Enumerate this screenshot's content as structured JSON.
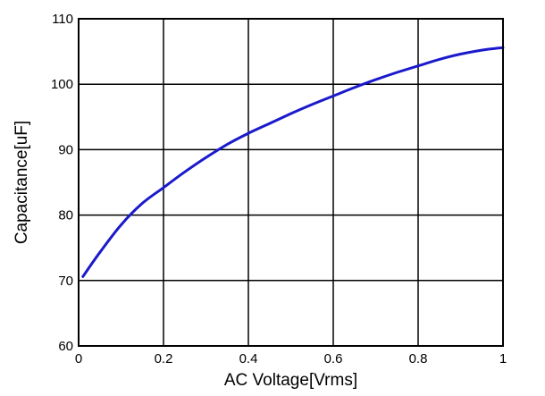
{
  "chart_data": {
    "type": "line",
    "title": "",
    "xlabel": "AC Voltage[Vrms]",
    "ylabel": "Capacitance[uF]",
    "xlim": [
      0,
      1
    ],
    "ylim": [
      60,
      110
    ],
    "xticks": [
      0,
      0.2,
      0.4,
      0.6,
      0.8,
      1
    ],
    "xtick_labels": [
      "0",
      "0.2",
      "0.4",
      "0.6",
      "0.8",
      "1"
    ],
    "yticks": [
      60,
      70,
      80,
      90,
      100,
      110
    ],
    "ytick_labels": [
      "60",
      "70",
      "80",
      "90",
      "100",
      "110"
    ],
    "grid": true,
    "legend": "none",
    "line_color": "#1a1acc",
    "series": [
      {
        "x": [
          0.01,
          0.05,
          0.1,
          0.15,
          0.2,
          0.25,
          0.3,
          0.35,
          0.4,
          0.45,
          0.5,
          0.55,
          0.6,
          0.65,
          0.7,
          0.75,
          0.8,
          0.85,
          0.9,
          0.95,
          1.0
        ],
        "values": [
          70.6,
          74.3,
          78.5,
          81.8,
          84.2,
          86.6,
          88.8,
          90.8,
          92.5,
          94.0,
          95.5,
          96.9,
          98.2,
          99.5,
          100.7,
          101.8,
          102.8,
          103.8,
          104.6,
          105.2,
          105.6
        ]
      }
    ]
  }
}
